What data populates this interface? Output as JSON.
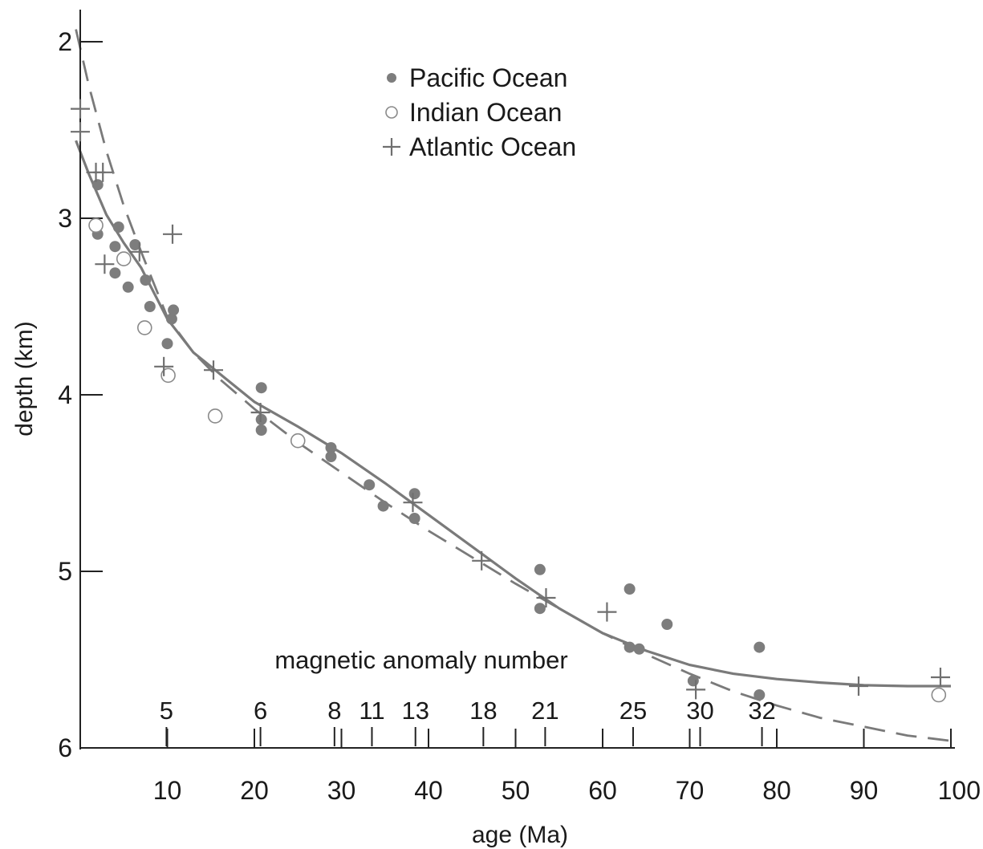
{
  "chart_data": {
    "type": "scatter",
    "xlabel": "age (Ma)",
    "ylabel": "depth (km)",
    "xlim": [
      0,
      100
    ],
    "ylim": [
      2,
      6
    ],
    "y_inverted": true,
    "x_ticks": [
      10,
      20,
      30,
      40,
      50,
      60,
      70,
      80,
      90,
      100
    ],
    "y_ticks": [
      2,
      3,
      4,
      5,
      6
    ],
    "top_axis": {
      "label": "magnetic anomaly number",
      "anomalies": [
        {
          "label": "5",
          "age": 9.9
        },
        {
          "label": "6",
          "age": 20.7
        },
        {
          "label": "8",
          "age": 29.2
        },
        {
          "label": "11",
          "age": 33.5
        },
        {
          "label": "13",
          "age": 38.5
        },
        {
          "label": "18",
          "age": 46.3
        },
        {
          "label": "21",
          "age": 53.4
        },
        {
          "label": "25",
          "age": 63.5
        },
        {
          "label": "30",
          "age": 71.2
        },
        {
          "label": "32",
          "age": 78.3
        }
      ]
    },
    "legend": {
      "placement": "top-center",
      "entries": [
        {
          "label": "Pacific Ocean",
          "marker": "filled-circle"
        },
        {
          "label": "Indian Ocean",
          "marker": "open-circle"
        },
        {
          "label": "Atlantic Ocean",
          "marker": "plus"
        }
      ]
    },
    "series": [
      {
        "name": "Pacific Ocean",
        "marker": "filled-circle",
        "points": [
          [
            2,
            2.81
          ],
          [
            2,
            3.09
          ],
          [
            4,
            3.16
          ],
          [
            4,
            3.31
          ],
          [
            4.4,
            3.05
          ],
          [
            5.5,
            3.39
          ],
          [
            6.3,
            3.15
          ],
          [
            7.5,
            3.35
          ],
          [
            8,
            3.5
          ],
          [
            10,
            3.71
          ],
          [
            10.5,
            3.57
          ],
          [
            10.7,
            3.52
          ],
          [
            20.8,
            3.96
          ],
          [
            20.8,
            4.14
          ],
          [
            20.8,
            4.2
          ],
          [
            28.8,
            4.3
          ],
          [
            28.8,
            4.35
          ],
          [
            33.2,
            4.51
          ],
          [
            34.8,
            4.63
          ],
          [
            38.4,
            4.56
          ],
          [
            38.4,
            4.7
          ],
          [
            52.8,
            4.99
          ],
          [
            52.8,
            5.21
          ],
          [
            63.1,
            5.1
          ],
          [
            63.1,
            5.43
          ],
          [
            64.2,
            5.44
          ],
          [
            67.4,
            5.3
          ],
          [
            70.4,
            5.62
          ],
          [
            78,
            5.43
          ],
          [
            78,
            5.7
          ]
        ]
      },
      {
        "name": "Indian Ocean",
        "marker": "open-circle",
        "points": [
          [
            1.8,
            3.04
          ],
          [
            5,
            3.23
          ],
          [
            7.4,
            3.62
          ],
          [
            10.1,
            3.89
          ],
          [
            15.5,
            4.12
          ],
          [
            25,
            4.26
          ],
          [
            98.6,
            5.7
          ]
        ]
      },
      {
        "name": "Atlantic Ocean",
        "marker": "plus",
        "points": [
          [
            0,
            2.38
          ],
          [
            0,
            2.51
          ],
          [
            1.8,
            2.74
          ],
          [
            2.6,
            2.74
          ],
          [
            2.8,
            3.26
          ],
          [
            6.8,
            3.19
          ],
          [
            10.6,
            3.09
          ],
          [
            9.6,
            3.84
          ],
          [
            15.3,
            3.86
          ],
          [
            20.7,
            4.1
          ],
          [
            38.2,
            4.61
          ],
          [
            46.1,
            4.94
          ],
          [
            53.5,
            5.15
          ],
          [
            60.5,
            5.23
          ],
          [
            70.7,
            5.67
          ],
          [
            89.4,
            5.65
          ],
          [
            98.8,
            5.6
          ]
        ]
      }
    ],
    "curves": [
      {
        "style": "solid",
        "points": [
          [
            -0.5,
            2.56
          ],
          [
            1,
            2.75
          ],
          [
            3,
            2.98
          ],
          [
            5,
            3.14
          ],
          [
            7,
            3.28
          ],
          [
            10,
            3.57
          ],
          [
            13,
            3.76
          ],
          [
            16,
            3.88
          ],
          [
            20,
            4.04
          ],
          [
            25,
            4.18
          ],
          [
            30,
            4.33
          ],
          [
            35,
            4.5
          ],
          [
            40,
            4.68
          ],
          [
            45,
            4.86
          ],
          [
            50,
            5.04
          ],
          [
            55,
            5.21
          ],
          [
            60,
            5.35
          ],
          [
            65,
            5.45
          ],
          [
            70,
            5.53
          ],
          [
            75,
            5.58
          ],
          [
            80,
            5.61
          ],
          [
            85,
            5.63
          ],
          [
            90,
            5.645
          ],
          [
            95,
            5.65
          ],
          [
            100,
            5.65
          ]
        ]
      },
      {
        "style": "dashed",
        "points": [
          [
            -0.5,
            1.93
          ],
          [
            1,
            2.25
          ],
          [
            3,
            2.62
          ],
          [
            5,
            2.93
          ],
          [
            7,
            3.19
          ],
          [
            10,
            3.56
          ],
          [
            13,
            3.76
          ],
          [
            16,
            3.91
          ],
          [
            20,
            4.08
          ],
          [
            25,
            4.27
          ],
          [
            30,
            4.44
          ],
          [
            35,
            4.61
          ],
          [
            40,
            4.77
          ],
          [
            45,
            4.92
          ],
          [
            50,
            5.07
          ],
          [
            55,
            5.21
          ],
          [
            60,
            5.35
          ],
          [
            65,
            5.47
          ],
          [
            70,
            5.58
          ],
          [
            75,
            5.68
          ],
          [
            80,
            5.76
          ],
          [
            85,
            5.83
          ],
          [
            90,
            5.88
          ],
          [
            95,
            5.93
          ],
          [
            100,
            5.96
          ]
        ]
      }
    ]
  }
}
